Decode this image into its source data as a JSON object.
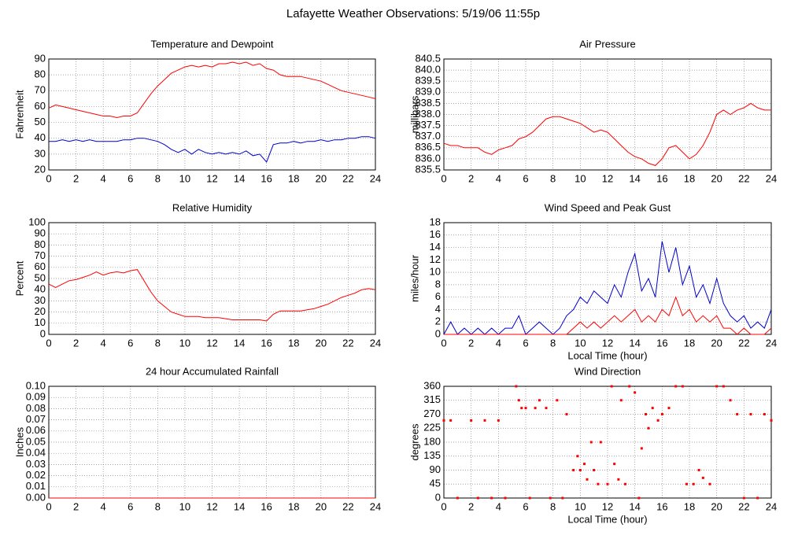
{
  "title": "Lafayette Weather Observations: 5/19/06 11:55p",
  "chart_data": [
    {
      "type": "line",
      "title": "Temperature and Dewpoint",
      "ylabel": "Fahrenheit",
      "x": [
        0,
        0.5,
        1,
        1.5,
        2,
        2.5,
        3,
        3.5,
        4,
        4.5,
        5,
        5.5,
        6,
        6.5,
        7,
        7.5,
        8,
        8.5,
        9,
        9.5,
        10,
        10.5,
        11,
        11.5,
        12,
        12.5,
        13,
        13.5,
        14,
        14.5,
        15,
        15.5,
        16,
        16.5,
        17,
        17.5,
        18,
        18.5,
        19,
        19.5,
        20,
        20.5,
        21,
        21.5,
        22,
        22.5,
        23,
        23.5,
        24
      ],
      "xlim": [
        0,
        24
      ],
      "xticks": [
        0,
        2,
        4,
        6,
        8,
        10,
        12,
        14,
        16,
        18,
        20,
        22,
        24
      ],
      "ylim": [
        20,
        90
      ],
      "yticks": [
        20,
        30,
        40,
        50,
        60,
        70,
        80,
        90
      ],
      "grid": true,
      "series": [
        {
          "color": "#ff0000",
          "values": [
            59,
            61,
            60,
            59,
            58,
            57,
            56,
            55,
            54,
            54,
            53,
            54,
            54,
            56,
            62,
            68,
            73,
            77,
            81,
            83,
            85,
            86,
            85,
            86,
            85,
            87,
            87,
            88,
            87,
            88,
            86,
            87,
            84,
            83,
            80,
            79,
            79,
            79,
            78,
            77,
            76,
            74,
            72,
            70,
            69,
            68,
            67,
            66,
            65
          ]
        },
        {
          "color": "#0000cc",
          "values": [
            38,
            38,
            39,
            38,
            39,
            38,
            39,
            38,
            38,
            38,
            38,
            39,
            39,
            40,
            40,
            39,
            38,
            36,
            33,
            31,
            33,
            30,
            33,
            31,
            30,
            31,
            30,
            31,
            30,
            32,
            29,
            30,
            25,
            36,
            37,
            37,
            38,
            37,
            38,
            38,
            39,
            38,
            39,
            39,
            40,
            40,
            41,
            41,
            40
          ]
        }
      ]
    },
    {
      "type": "line",
      "title": "Air Pressure",
      "ylabel": "millibars",
      "x": [
        0,
        0.5,
        1,
        1.5,
        2,
        2.5,
        3,
        3.5,
        4,
        4.5,
        5,
        5.5,
        6,
        6.5,
        7,
        7.5,
        8,
        8.5,
        9,
        9.5,
        10,
        10.5,
        11,
        11.5,
        12,
        12.5,
        13,
        13.5,
        14,
        14.5,
        15,
        15.5,
        16,
        16.5,
        17,
        17.5,
        18,
        18.5,
        19,
        19.5,
        20,
        20.5,
        21,
        21.5,
        22,
        22.5,
        23,
        23.5,
        24
      ],
      "xlim": [
        0,
        24
      ],
      "xticks": [
        0,
        2,
        4,
        6,
        8,
        10,
        12,
        14,
        16,
        18,
        20,
        22,
        24
      ],
      "ylim": [
        835.5,
        840.5
      ],
      "yticks": [
        835.5,
        {
          "value": 836,
          "label": "836.0"
        },
        836.5,
        {
          "value": 837,
          "label": "837.0"
        },
        837.5,
        {
          "value": 838,
          "label": "838.0"
        },
        838.5,
        {
          "value": 839,
          "label": "839.0"
        },
        839.5,
        {
          "value": 840,
          "label": "840.0"
        },
        840.5
      ],
      "grid": true,
      "series": [
        {
          "color": "#ff0000",
          "values": [
            836.7,
            836.6,
            836.6,
            836.5,
            836.5,
            836.5,
            836.3,
            836.2,
            836.4,
            836.5,
            836.6,
            836.9,
            837.0,
            837.2,
            837.5,
            837.8,
            837.9,
            837.9,
            837.8,
            837.7,
            837.6,
            837.4,
            837.2,
            837.3,
            837.2,
            836.9,
            836.6,
            836.3,
            836.1,
            836.0,
            835.8,
            835.7,
            836.0,
            836.5,
            836.6,
            836.3,
            836.0,
            836.2,
            836.6,
            837.2,
            838.0,
            838.2,
            838.0,
            838.2,
            838.3,
            838.5,
            838.3,
            838.2,
            838.2
          ]
        }
      ]
    },
    {
      "type": "line",
      "title": "Relative Humidity",
      "ylabel": "Percent",
      "x": [
        0,
        0.5,
        1,
        1.5,
        2,
        2.5,
        3,
        3.5,
        4,
        4.5,
        5,
        5.5,
        6,
        6.5,
        7,
        7.5,
        8,
        8.5,
        9,
        9.5,
        10,
        10.5,
        11,
        11.5,
        12,
        12.5,
        13,
        13.5,
        14,
        14.5,
        15,
        15.5,
        16,
        16.5,
        17,
        17.5,
        18,
        18.5,
        19,
        19.5,
        20,
        20.5,
        21,
        21.5,
        22,
        22.5,
        23,
        23.5,
        24
      ],
      "xlim": [
        0,
        24
      ],
      "xticks": [
        0,
        2,
        4,
        6,
        8,
        10,
        12,
        14,
        16,
        18,
        20,
        22,
        24
      ],
      "ylim": [
        0,
        100
      ],
      "yticks": [
        0,
        10,
        20,
        30,
        40,
        50,
        60,
        70,
        80,
        90,
        100
      ],
      "grid": true,
      "series": [
        {
          "color": "#ff0000",
          "values": [
            45,
            42,
            45,
            48,
            49,
            51,
            53,
            56,
            53,
            55,
            56,
            55,
            57,
            58,
            48,
            38,
            30,
            25,
            20,
            18,
            16,
            16,
            16,
            15,
            15,
            15,
            14,
            13,
            13,
            13,
            13,
            13,
            12,
            18,
            21,
            21,
            21,
            21,
            22,
            23,
            25,
            27,
            30,
            33,
            35,
            37,
            40,
            41,
            40
          ]
        }
      ]
    },
    {
      "type": "line",
      "title": "Wind Speed and Peak Gust",
      "ylabel": "miles/hour",
      "xlabel": "Local Time (hour)",
      "x": [
        0,
        0.5,
        1,
        1.5,
        2,
        2.5,
        3,
        3.5,
        4,
        4.5,
        5,
        5.5,
        6,
        6.5,
        7,
        7.5,
        8,
        8.5,
        9,
        9.5,
        10,
        10.5,
        11,
        11.5,
        12,
        12.5,
        13,
        13.5,
        14,
        14.5,
        15,
        15.5,
        16,
        16.5,
        17,
        17.5,
        18,
        18.5,
        19,
        19.5,
        20,
        20.5,
        21,
        21.5,
        22,
        22.5,
        23,
        23.5,
        24
      ],
      "xlim": [
        0,
        24
      ],
      "xticks": [
        0,
        2,
        4,
        6,
        8,
        10,
        12,
        14,
        16,
        18,
        20,
        22,
        24
      ],
      "ylim": [
        0,
        18
      ],
      "yticks": [
        0,
        2,
        4,
        6,
        8,
        10,
        12,
        14,
        16,
        18
      ],
      "grid": true,
      "series": [
        {
          "color": "#0000cc",
          "values": [
            0,
            2,
            0,
            1,
            0,
            1,
            0,
            1,
            0,
            1,
            1,
            3,
            0,
            1,
            2,
            1,
            0,
            1,
            3,
            4,
            6,
            5,
            7,
            6,
            5,
            8,
            6,
            10,
            13,
            7,
            9,
            6,
            15,
            10,
            14,
            8,
            11,
            6,
            8,
            5,
            9,
            5,
            3,
            2,
            3,
            1,
            2,
            1,
            4
          ]
        },
        {
          "color": "#ff0000",
          "values": [
            0,
            0,
            0,
            0,
            0,
            0,
            0,
            0,
            0,
            0,
            0,
            0,
            0,
            0,
            0,
            0,
            0,
            0,
            0,
            1,
            2,
            1,
            2,
            1,
            2,
            3,
            2,
            3,
            4,
            2,
            3,
            2,
            4,
            3,
            6,
            3,
            4,
            2,
            3,
            2,
            3,
            1,
            1,
            0,
            1,
            0,
            0,
            0,
            1
          ]
        }
      ]
    },
    {
      "type": "line",
      "title": "24 hour Accumulated Rainfall",
      "ylabel": "Inches",
      "x": [
        0,
        24
      ],
      "xlim": [
        0,
        24
      ],
      "xticks": [
        0,
        2,
        4,
        6,
        8,
        10,
        12,
        14,
        16,
        18,
        20,
        22,
        24
      ],
      "ylim": [
        0,
        0.1
      ],
      "yticks": [
        {
          "value": 0,
          "label": "0.00"
        },
        0.01,
        0.02,
        0.03,
        0.04,
        0.05,
        0.06,
        0.07,
        0.08,
        0.09,
        {
          "value": 0.1,
          "label": "0.10"
        }
      ],
      "grid": true,
      "series": [
        {
          "color": "#ff0000",
          "values": [
            0,
            0
          ]
        }
      ]
    },
    {
      "type": "scatter",
      "title": "Wind Direction",
      "ylabel": "degrees",
      "xlabel": "Local Time (hour)",
      "x": [
        0,
        0.5,
        1,
        2,
        2.5,
        3,
        3.5,
        4,
        4.5,
        5.3,
        5.5,
        5.7,
        6,
        6.3,
        6.7,
        7,
        7.5,
        7.8,
        8.3,
        8.7,
        9,
        9.5,
        9.8,
        10,
        10.3,
        10.5,
        10.8,
        11,
        11.3,
        11.5,
        12,
        12.3,
        12.5,
        12.8,
        13,
        13.3,
        13.6,
        14,
        14.3,
        14.5,
        14.8,
        15,
        15.3,
        15.7,
        16,
        16.5,
        17,
        17.5,
        17.8,
        18.3,
        18.7,
        19,
        19.5,
        20,
        20.5,
        21,
        21.5,
        22,
        22.5,
        23,
        23.5,
        24
      ],
      "xlim": [
        0,
        24
      ],
      "xticks": [
        0,
        2,
        4,
        6,
        8,
        10,
        12,
        14,
        16,
        18,
        20,
        22,
        24
      ],
      "ylim": [
        0,
        360
      ],
      "yticks": [
        0,
        45,
        90,
        135,
        180,
        225,
        270,
        315,
        360
      ],
      "grid": true,
      "series": [
        {
          "color": "#ff0000",
          "values": [
            250,
            250,
            0,
            250,
            0,
            250,
            0,
            250,
            0,
            360,
            315,
            290,
            290,
            0,
            290,
            315,
            290,
            0,
            315,
            0,
            270,
            90,
            135,
            90,
            110,
            60,
            180,
            90,
            45,
            180,
            45,
            360,
            110,
            60,
            315,
            45,
            360,
            340,
            0,
            160,
            270,
            225,
            290,
            250,
            270,
            290,
            360,
            360,
            45,
            45,
            90,
            65,
            45,
            360,
            360,
            315,
            270,
            0,
            270,
            0,
            270,
            250
          ]
        }
      ]
    }
  ]
}
